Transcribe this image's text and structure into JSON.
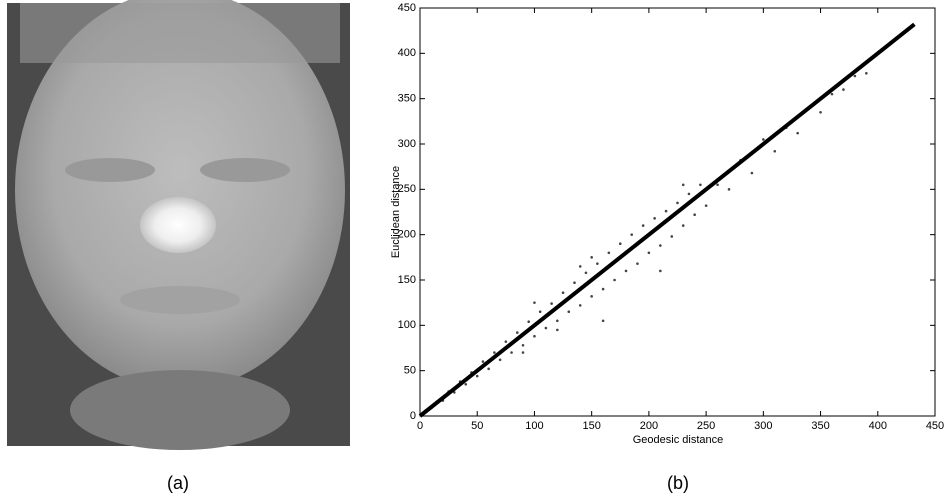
{
  "chart_data": {
    "type": "scatter",
    "xlabel": "Geodesic distance",
    "ylabel": "Euclidean distance",
    "xlim": [
      0,
      450
    ],
    "ylim": [
      0,
      450
    ],
    "xticks": [
      0,
      50,
      100,
      150,
      200,
      250,
      300,
      350,
      400,
      450
    ],
    "yticks": [
      0,
      50,
      100,
      150,
      200,
      250,
      300,
      350,
      400,
      450
    ],
    "series": [
      {
        "type": "scatter",
        "color": "#444444",
        "x": [
          5,
          10,
          15,
          20,
          25,
          30,
          35,
          40,
          45,
          50,
          55,
          60,
          65,
          70,
          75,
          80,
          85,
          90,
          95,
          100,
          105,
          110,
          115,
          120,
          125,
          130,
          135,
          140,
          145,
          150,
          155,
          160,
          165,
          170,
          175,
          180,
          185,
          190,
          195,
          200,
          205,
          210,
          215,
          220,
          225,
          230,
          235,
          240,
          245,
          250,
          260,
          270,
          280,
          290,
          300,
          310,
          320,
          330,
          340,
          350,
          360,
          370,
          380,
          390,
          100,
          120,
          160,
          150,
          210,
          90,
          140,
          230
        ],
        "values": [
          6,
          9,
          16,
          17,
          27,
          26,
          38,
          35,
          48,
          44,
          60,
          52,
          70,
          62,
          82,
          70,
          92,
          78,
          104,
          88,
          115,
          97,
          124,
          105,
          136,
          115,
          147,
          122,
          158,
          132,
          168,
          140,
          180,
          150,
          190,
          160,
          200,
          168,
          210,
          180,
          218,
          188,
          226,
          198,
          235,
          210,
          245,
          222,
          255,
          232,
          255,
          250,
          282,
          268,
          305,
          292,
          318,
          312,
          340,
          335,
          355,
          360,
          375,
          378,
          125,
          95,
          105,
          175,
          160,
          70,
          165,
          255
        ]
      },
      {
        "type": "line",
        "color": "#000000",
        "x": [
          0,
          432
        ],
        "values": [
          0,
          432
        ]
      }
    ]
  },
  "captions": [
    "(a)",
    "(b)"
  ]
}
